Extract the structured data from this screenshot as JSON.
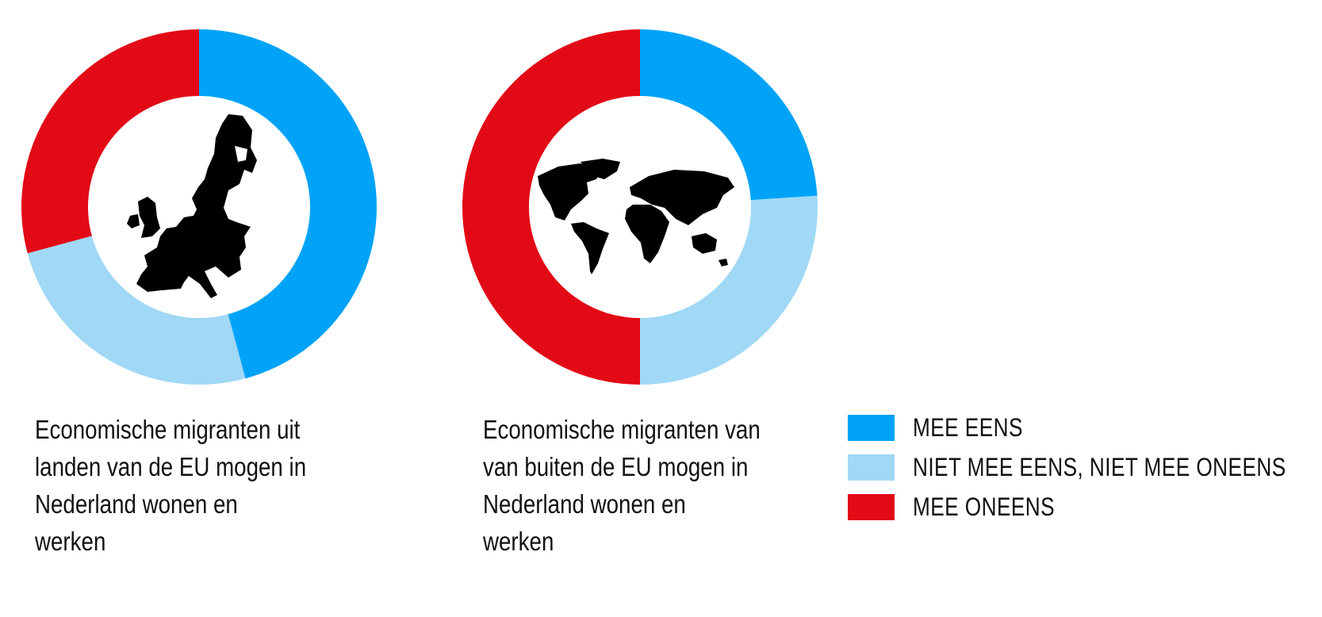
{
  "chart_data": [
    {
      "type": "pie",
      "subtype": "donut",
      "title": "Economische migranten uit landen van de EU mogen in Nederland wonen en werken",
      "title_lines": [
        "Economische migranten uit",
        "landen van de EU mogen in",
        "Nederland wonen en werken"
      ],
      "categories": [
        "MEE EENS",
        "NIET MEE EENS, NIET MEE ONEENS",
        "MEE ONEENS"
      ],
      "values": [
        45.8,
        25.0,
        29.2
      ],
      "center_icon": "europe-map-icon"
    },
    {
      "type": "pie",
      "subtype": "donut",
      "title": "Economische migranten van van buiten de EU mogen in Nederland wonen en werken",
      "title_lines": [
        "Economische migranten van",
        "van buiten de EU mogen in",
        "Nederland wonen en werken"
      ],
      "categories": [
        "MEE EENS",
        "NIET MEE EENS, NIET MEE ONEENS",
        "MEE ONEENS"
      ],
      "values": [
        24.0,
        26.0,
        50.0
      ],
      "center_icon": "world-map-icon"
    }
  ],
  "legend": {
    "position": "bottom-right",
    "items": [
      {
        "label": "MEE EENS",
        "color": "#00A3F7"
      },
      {
        "label": "NIET MEE EENS, NIET MEE ONEENS",
        "color": "#A0D8F5"
      },
      {
        "label": "MEE ONEENS",
        "color": "#E20A17"
      }
    ]
  }
}
